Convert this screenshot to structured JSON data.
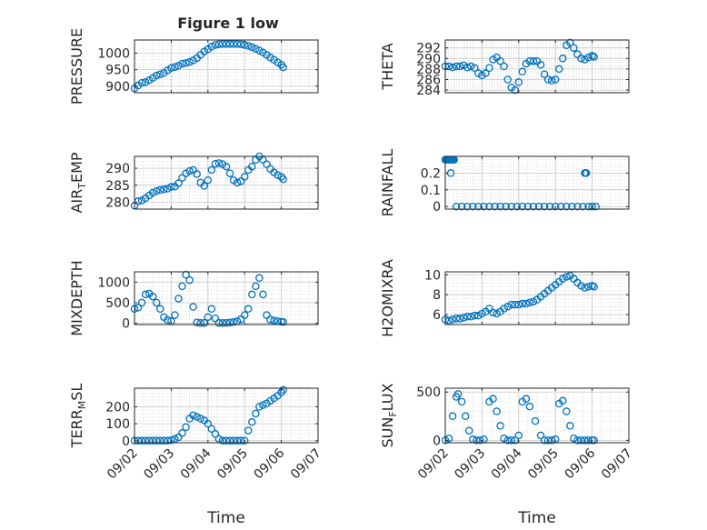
{
  "figure": {
    "title": "Figure 1 low",
    "marker_color": "#0072BD",
    "axis_color": "#262626",
    "grid_color": "#d6d6d6"
  },
  "chart_data": [
    {
      "id": "pressure",
      "type": "scatter",
      "ylabel": "PRESSURE",
      "xlabel": "",
      "ylim": [
        880,
        1040
      ],
      "yticks": [
        900,
        950,
        1000
      ],
      "xlim_days": [
        2,
        7
      ],
      "xtick_labels": [],
      "grid": "major+minor",
      "x": [
        2.0,
        2.1,
        2.2,
        2.3,
        2.4,
        2.5,
        2.6,
        2.7,
        2.8,
        2.9,
        3.0,
        3.1,
        3.2,
        3.3,
        3.4,
        3.5,
        3.6,
        3.7,
        3.8,
        3.9,
        4.0,
        4.1,
        4.2,
        4.3,
        4.4,
        4.5,
        4.6,
        4.7,
        4.8,
        4.9,
        5.0,
        5.1,
        5.2,
        5.3,
        5.4,
        5.5,
        5.6,
        5.7,
        5.8,
        5.9,
        6.0,
        6.05
      ],
      "y": [
        893,
        902,
        910,
        912,
        918,
        925,
        932,
        936,
        940,
        948,
        955,
        958,
        962,
        968,
        970,
        973,
        978,
        985,
        995,
        1005,
        1012,
        1020,
        1025,
        1027,
        1028,
        1028,
        1028,
        1028,
        1028,
        1027,
        1025,
        1022,
        1018,
        1013,
        1008,
        1002,
        995,
        987,
        980,
        972,
        965,
        957
      ]
    },
    {
      "id": "theta",
      "type": "scatter",
      "ylabel": "THETA",
      "xlabel": "",
      "ylim": [
        283.5,
        293.5
      ],
      "yticks": [
        284,
        286,
        288,
        290,
        292
      ],
      "xlim_days": [
        2,
        7
      ],
      "xtick_labels": [],
      "grid": "major+minor",
      "x": [
        2.0,
        2.1,
        2.2,
        2.3,
        2.4,
        2.5,
        2.6,
        2.7,
        2.8,
        2.9,
        3.0,
        3.1,
        3.2,
        3.3,
        3.4,
        3.5,
        3.6,
        3.7,
        3.8,
        3.9,
        4.0,
        4.1,
        4.2,
        4.3,
        4.4,
        4.5,
        4.6,
        4.7,
        4.8,
        4.9,
        5.0,
        5.1,
        5.2,
        5.3,
        5.4,
        5.5,
        5.6,
        5.7,
        5.8,
        5.9,
        6.0,
        6.05
      ],
      "y": [
        288.5,
        288.5,
        288.3,
        288.5,
        288.5,
        288.7,
        288.3,
        288.5,
        288.2,
        287.2,
        286.8,
        287.2,
        288.2,
        289.8,
        290.2,
        289.5,
        288.5,
        286.0,
        284.5,
        284.0,
        285.5,
        287.5,
        289.0,
        289.5,
        289.5,
        289.5,
        288.8,
        287.0,
        286.0,
        285.8,
        286.0,
        288.0,
        290.0,
        292.5,
        293.0,
        292.0,
        290.8,
        290.0,
        289.8,
        290.2,
        290.5,
        290.3
      ]
    },
    {
      "id": "air-temp",
      "type": "scatter",
      "ylabel": "AIR_TEMP",
      "ylabel_parts": [
        "AIR",
        "T",
        "EMP"
      ],
      "xlabel": "",
      "ylim": [
        278,
        293.5
      ],
      "yticks": [
        280,
        285,
        290
      ],
      "xlim_days": [
        2,
        7
      ],
      "xtick_labels": [],
      "grid": "major+minor",
      "x": [
        2.0,
        2.1,
        2.2,
        2.3,
        2.4,
        2.5,
        2.6,
        2.7,
        2.8,
        2.9,
        3.0,
        3.1,
        3.2,
        3.3,
        3.4,
        3.5,
        3.6,
        3.7,
        3.8,
        3.9,
        4.0,
        4.1,
        4.2,
        4.3,
        4.4,
        4.5,
        4.6,
        4.7,
        4.8,
        4.9,
        5.0,
        5.1,
        5.2,
        5.3,
        5.4,
        5.5,
        5.6,
        5.7,
        5.8,
        5.9,
        6.0,
        6.05
      ],
      "y": [
        279.0,
        280.3,
        280.5,
        281.2,
        282.0,
        282.8,
        283.3,
        283.6,
        283.8,
        284.0,
        284.5,
        284.6,
        285.6,
        287.2,
        288.5,
        289.2,
        289.5,
        288.3,
        285.8,
        284.8,
        286.5,
        289.5,
        291.3,
        291.5,
        291.2,
        290.5,
        288.5,
        286.5,
        285.8,
        286.2,
        287.5,
        289.5,
        290.5,
        292.5,
        293.5,
        292.5,
        291.2,
        289.8,
        288.8,
        288.0,
        287.5,
        286.8
      ]
    },
    {
      "id": "rainfall",
      "type": "scatter",
      "ylabel": "RAINFALL",
      "xlabel": "",
      "ylim": [
        -0.015,
        0.3
      ],
      "yticks": [
        0,
        0.1,
        0.2
      ],
      "xlim_days": [
        2,
        7
      ],
      "xtick_labels": [],
      "grid": "major+minor",
      "x": [
        2.0,
        2.03,
        2.06,
        2.09,
        2.12,
        2.15,
        2.18,
        2.21,
        2.24,
        2.15,
        2.3,
        2.45,
        2.6,
        2.75,
        2.9,
        3.05,
        3.2,
        3.35,
        3.5,
        3.65,
        3.8,
        3.95,
        4.1,
        4.25,
        4.4,
        4.55,
        4.7,
        4.85,
        5.0,
        5.15,
        5.3,
        5.45,
        5.6,
        5.75,
        5.8,
        5.82,
        5.84,
        5.9,
        6.0,
        6.1
      ],
      "y": [
        0.28,
        0.28,
        0.28,
        0.28,
        0.28,
        0.28,
        0.28,
        0.28,
        0.28,
        0.2,
        0,
        0,
        0,
        0,
        0,
        0,
        0,
        0,
        0,
        0,
        0,
        0,
        0,
        0,
        0,
        0,
        0,
        0,
        0,
        0,
        0,
        0,
        0,
        0,
        0.2,
        0.2,
        0.2,
        0,
        0,
        0
      ]
    },
    {
      "id": "mixdepth",
      "type": "scatter",
      "ylabel": "MIXDEPTH",
      "xlabel": "",
      "ylim": [
        -30,
        1250
      ],
      "yticks": [
        0,
        500,
        1000
      ],
      "xlim_days": [
        2,
        7
      ],
      "xtick_labels": [],
      "grid": "major+minor",
      "x": [
        2.0,
        2.1,
        2.2,
        2.3,
        2.4,
        2.5,
        2.6,
        2.7,
        2.8,
        2.9,
        3.0,
        3.1,
        3.2,
        3.3,
        3.4,
        3.5,
        3.6,
        3.7,
        3.8,
        3.9,
        4.0,
        4.1,
        4.2,
        4.3,
        4.4,
        4.5,
        4.6,
        4.7,
        4.8,
        4.9,
        5.0,
        5.1,
        5.2,
        5.3,
        5.4,
        5.5,
        5.6,
        5.7,
        5.8,
        5.9,
        6.0,
        6.05
      ],
      "y": [
        350,
        380,
        500,
        700,
        720,
        650,
        500,
        350,
        150,
        80,
        50,
        200,
        600,
        900,
        1180,
        1050,
        400,
        20,
        10,
        10,
        150,
        350,
        120,
        10,
        10,
        10,
        20,
        30,
        50,
        100,
        200,
        350,
        700,
        900,
        1100,
        700,
        200,
        90,
        70,
        50,
        40,
        30
      ]
    },
    {
      "id": "h2omixra",
      "type": "scatter",
      "ylabel": "H2OMIXRA",
      "xlabel": "",
      "ylim": [
        5,
        10.3
      ],
      "yticks": [
        6,
        8,
        10
      ],
      "xlim_days": [
        2,
        7
      ],
      "xtick_labels": [],
      "grid": "major+minor",
      "x": [
        2.0,
        2.1,
        2.2,
        2.3,
        2.4,
        2.5,
        2.6,
        2.7,
        2.8,
        2.9,
        3.0,
        3.1,
        3.2,
        3.3,
        3.4,
        3.5,
        3.6,
        3.7,
        3.8,
        3.9,
        4.0,
        4.1,
        4.2,
        4.3,
        4.4,
        4.5,
        4.6,
        4.7,
        4.8,
        4.9,
        5.0,
        5.1,
        5.2,
        5.3,
        5.4,
        5.5,
        5.6,
        5.7,
        5.8,
        5.9,
        6.0,
        6.05
      ],
      "y": [
        5.5,
        5.4,
        5.5,
        5.6,
        5.6,
        5.7,
        5.8,
        5.8,
        5.9,
        5.9,
        6.1,
        6.3,
        6.6,
        6.2,
        6.1,
        6.3,
        6.6,
        6.8,
        7.0,
        7.0,
        7.0,
        7.1,
        7.1,
        7.2,
        7.3,
        7.5,
        7.8,
        8.1,
        8.4,
        8.7,
        9.0,
        9.3,
        9.6,
        9.8,
        9.9,
        9.6,
        9.2,
        8.9,
        8.7,
        8.8,
        8.9,
        8.8
      ]
    },
    {
      "id": "terr-msl",
      "type": "scatter",
      "ylabel": "TERR_MSL",
      "ylabel_parts": [
        "TERR",
        "M",
        "SL"
      ],
      "xlabel": "Time",
      "ylim": [
        -12,
        310
      ],
      "yticks": [
        0,
        100,
        200
      ],
      "xlim_days": [
        2,
        7
      ],
      "xtick_days": [
        2,
        3,
        4,
        5,
        6,
        7
      ],
      "xtick_labels": [
        "09/02",
        "09/03",
        "09/04",
        "09/05",
        "09/06",
        "09/07"
      ],
      "grid": "major+minor",
      "x": [
        2.0,
        2.1,
        2.2,
        2.3,
        2.4,
        2.5,
        2.6,
        2.7,
        2.8,
        2.9,
        3.0,
        3.1,
        3.2,
        3.3,
        3.4,
        3.5,
        3.6,
        3.7,
        3.8,
        3.9,
        4.0,
        4.1,
        4.2,
        4.3,
        4.4,
        4.5,
        4.6,
        4.7,
        4.8,
        4.9,
        5.0,
        5.1,
        5.2,
        5.3,
        5.4,
        5.5,
        5.6,
        5.7,
        5.8,
        5.9,
        6.0,
        6.05
      ],
      "y": [
        0,
        0,
        0,
        0,
        0,
        0,
        0,
        0,
        0,
        0,
        3,
        10,
        20,
        45,
        80,
        130,
        150,
        140,
        130,
        120,
        100,
        70,
        40,
        10,
        0,
        0,
        0,
        0,
        0,
        0,
        0,
        60,
        110,
        160,
        200,
        210,
        220,
        235,
        250,
        265,
        285,
        300
      ]
    },
    {
      "id": "sun-flux",
      "type": "scatter",
      "ylabel": "SUN_FLUX",
      "ylabel_parts": [
        "SUN",
        "F",
        "LUX"
      ],
      "xlabel": "Time",
      "ylim": [
        -25,
        540
      ],
      "yticks": [
        0,
        500
      ],
      "xlim_days": [
        2,
        7
      ],
      "xtick_days": [
        2,
        3,
        4,
        5,
        6,
        7
      ],
      "xtick_labels": [
        "09/02",
        "09/03",
        "09/04",
        "09/05",
        "09/06",
        "09/07"
      ],
      "grid": "major+minor",
      "x": [
        2.0,
        2.1,
        2.2,
        2.3,
        2.35,
        2.45,
        2.55,
        2.65,
        2.75,
        2.85,
        2.95,
        3.05,
        3.2,
        3.3,
        3.4,
        3.5,
        3.6,
        3.7,
        3.8,
        3.9,
        4.0,
        4.1,
        4.2,
        4.3,
        4.45,
        4.6,
        4.7,
        4.8,
        4.9,
        5.0,
        5.1,
        5.2,
        5.3,
        5.4,
        5.5,
        5.6,
        5.7,
        5.8,
        5.9,
        6.0,
        6.05
      ],
      "y": [
        0,
        20,
        250,
        450,
        480,
        400,
        250,
        100,
        10,
        0,
        0,
        10,
        400,
        430,
        300,
        150,
        20,
        0,
        0,
        0,
        50,
        400,
        430,
        350,
        200,
        50,
        0,
        0,
        0,
        10,
        380,
        410,
        300,
        150,
        20,
        0,
        0,
        0,
        0,
        0,
        0
      ]
    }
  ]
}
